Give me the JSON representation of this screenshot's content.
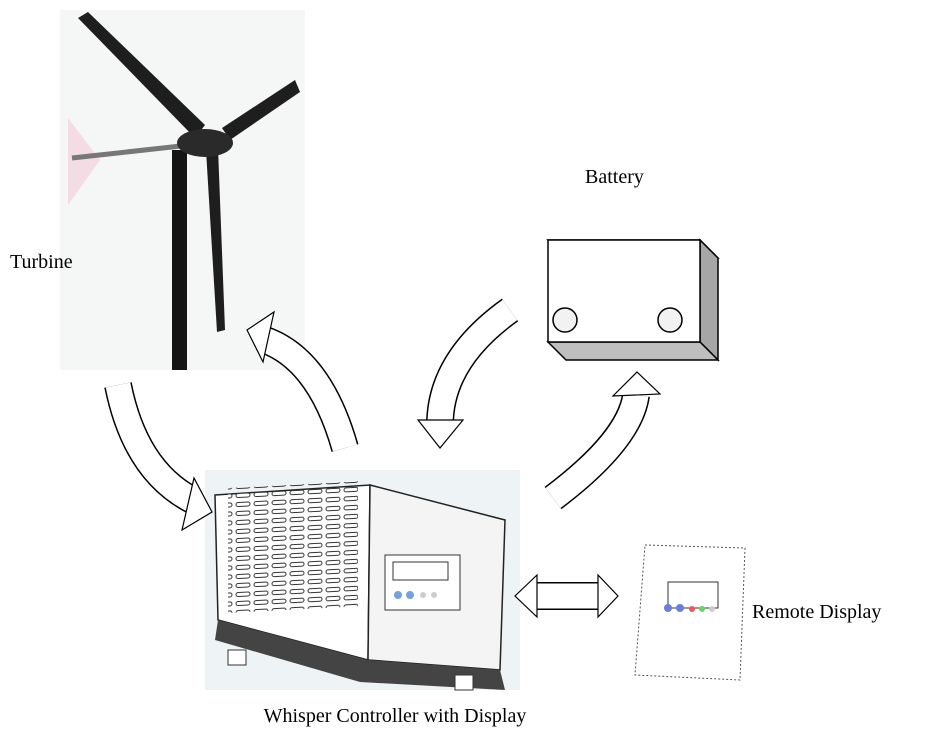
{
  "labels": {
    "turbine": "Turbine",
    "battery": "Battery",
    "controller": "Whisper Controller with Display",
    "remote_display": "Remote Display"
  }
}
